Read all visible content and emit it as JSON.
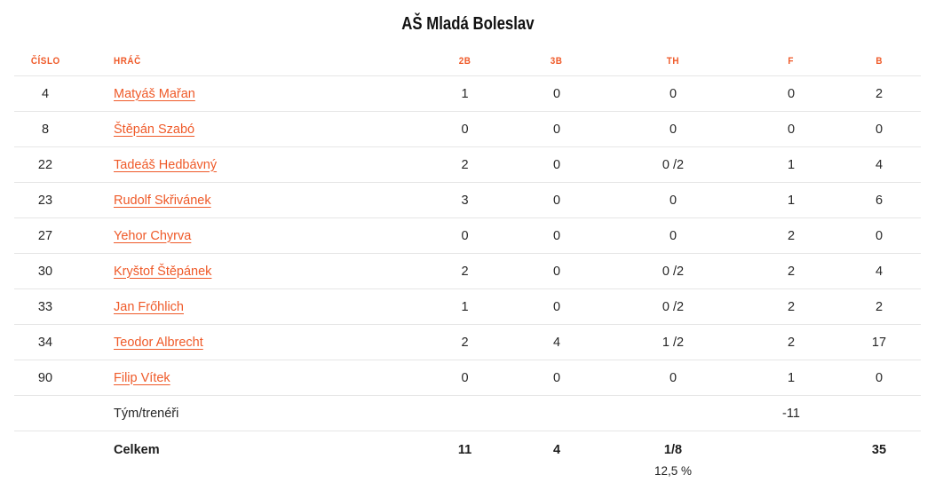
{
  "title": "AŠ Mladá Boleslav",
  "colors": {
    "accent_orange": "#ef5a29",
    "text_dark": "#222222",
    "divider_gray": "#e6e6e6",
    "background": "#ffffff"
  },
  "table": {
    "columns": [
      {
        "key": "number",
        "label": "ČÍSLO"
      },
      {
        "key": "player",
        "label": "HRÁČ"
      },
      {
        "key": "p2",
        "label": "2B"
      },
      {
        "key": "p3",
        "label": "3B"
      },
      {
        "key": "th",
        "label": "TH"
      },
      {
        "key": "f",
        "label": "F"
      },
      {
        "key": "b",
        "label": "B"
      }
    ],
    "rows": [
      {
        "number": "4",
        "player": "Matyáš Mařan",
        "p2": "1",
        "p3": "0",
        "th": "0",
        "f": "0",
        "b": "2"
      },
      {
        "number": "8",
        "player": "Štěpán Szabó",
        "p2": "0",
        "p3": "0",
        "th": "0",
        "f": "0",
        "b": "0"
      },
      {
        "number": "22",
        "player": "Tadeáš Hedbávný",
        "p2": "2",
        "p3": "0",
        "th": "0 /2",
        "f": "1",
        "b": "4"
      },
      {
        "number": "23",
        "player": "Rudolf Skřivánek",
        "p2": "3",
        "p3": "0",
        "th": "0",
        "f": "1",
        "b": "6"
      },
      {
        "number": "27",
        "player": "Yehor Chyrva",
        "p2": "0",
        "p3": "0",
        "th": "0",
        "f": "2",
        "b": "0"
      },
      {
        "number": "30",
        "player": "Kryštof Štěpánek",
        "p2": "2",
        "p3": "0",
        "th": "0 /2",
        "f": "2",
        "b": "4"
      },
      {
        "number": "33",
        "player": "Jan Frőhlich",
        "p2": "1",
        "p3": "0",
        "th": "0 /2",
        "f": "2",
        "b": "2"
      },
      {
        "number": "34",
        "player": "Teodor Albrecht",
        "p2": "2",
        "p3": "4",
        "th": "1 /2",
        "f": "2",
        "b": "17"
      },
      {
        "number": "90",
        "player": "Filip Vítek",
        "p2": "0",
        "p3": "0",
        "th": "0",
        "f": "1",
        "b": "0"
      }
    ],
    "team_row": {
      "label": "Tým/trenéři",
      "f": "-11"
    },
    "total_row": {
      "label": "Celkem",
      "p2": "11",
      "p3": "4",
      "th": "1/8",
      "th_pct": "12,5 %",
      "b": "35"
    }
  }
}
